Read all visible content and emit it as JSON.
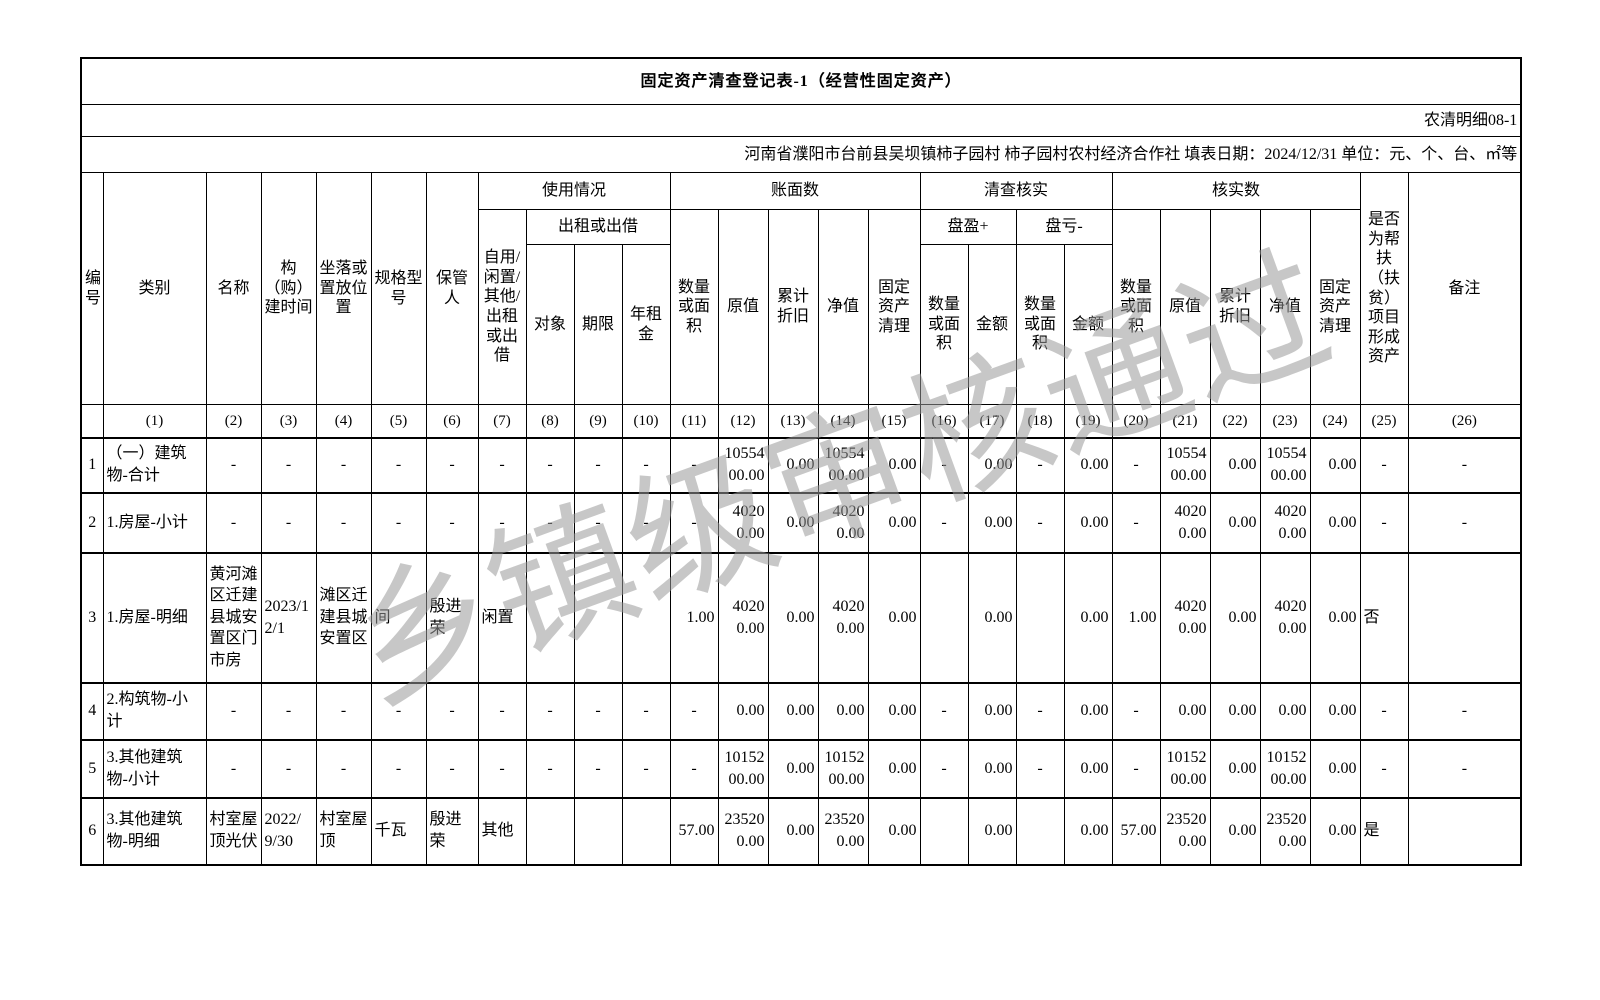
{
  "title": "固定资产清查登记表-1（经营性固定资产）",
  "form_code": "农清明细08-1",
  "info_line": "河南省濮阳市台前县吴坝镇柿子园村  柿子园村农村经济合作社  填表日期：2024/12/31  单位：元、个、台、㎡等",
  "watermark": "乡镇级审核通过",
  "colors": {
    "background": "#ffffff",
    "border": "#000000",
    "text": "#000000",
    "watermark_gray": "#b0b0b0"
  },
  "header": {
    "num": "编号",
    "category": "类别",
    "name": "名称",
    "build_time": "构（购）建时间",
    "location": "坐落或置放位置",
    "spec": "规格型号",
    "keeper": "保管人",
    "usage_group": "使用情况",
    "usage_self": "自用/闲置/其他/出租或出借",
    "rent_group": "出租或出借",
    "rent_target": "对象",
    "rent_term": "期限",
    "rent_annual": "年租金",
    "book_group": "账面数",
    "qty": "数量或面积",
    "original_value": "原值",
    "acc_depreciation": "累计折旧",
    "net_value": "净值",
    "clearing": "固定资产清理",
    "check_group": "清查核实",
    "surplus_group": "盘盈+",
    "loss_group": "盘亏-",
    "amount": "金额",
    "verified_group": "核实数",
    "poverty": "是否为帮扶（扶贫）项目形成资产",
    "remark": "备注"
  },
  "table": {
    "col_numbers": [
      "",
      "(1)",
      "(2)",
      "(3)",
      "(4)",
      "(5)",
      "(6)",
      "(7)",
      "(8)",
      "(9)",
      "(10)",
      "(11)",
      "(12)",
      "(13)",
      "(14)",
      "(15)",
      "(16)",
      "(17)",
      "(18)",
      "(19)",
      "(20)",
      "(21)",
      "(22)",
      "(23)",
      "(24)",
      "(25)",
      "(26)"
    ],
    "rows": [
      [
        "1",
        "（一）建筑物-合计",
        "-",
        "-",
        "-",
        "-",
        "-",
        "-",
        "-",
        "-",
        "-",
        "-",
        "1055400.00",
        "0.00",
        "1055400.00",
        "0.00",
        "-",
        "0.00",
        "-",
        "0.00",
        "-",
        "1055400.00",
        "0.00",
        "1055400.00",
        "0.00",
        "-",
        "-"
      ],
      [
        "2",
        "1.房屋-小计",
        "-",
        "-",
        "-",
        "-",
        "-",
        "-",
        "-",
        "-",
        "-",
        "-",
        "40200.00",
        "0.00",
        "40200.00",
        "0.00",
        "-",
        "0.00",
        "-",
        "0.00",
        "-",
        "40200.00",
        "0.00",
        "40200.00",
        "0.00",
        "-",
        "-"
      ],
      [
        "3",
        "1.房屋-明细",
        "黄河滩区迁建县城安置区门市房",
        "2023/12/1",
        "滩区迁建县城安置区",
        "间",
        "殷进荣",
        "闲置",
        "",
        "",
        "",
        "1.00",
        "40200.00",
        "0.00",
        "40200.00",
        "0.00",
        "",
        "0.00",
        "",
        "0.00",
        "1.00",
        "40200.00",
        "0.00",
        "40200.00",
        "0.00",
        "否",
        ""
      ],
      [
        "4",
        "2.构筑物-小计",
        "-",
        "-",
        "-",
        "-",
        "-",
        "-",
        "-",
        "-",
        "-",
        "-",
        "0.00",
        "0.00",
        "0.00",
        "0.00",
        "-",
        "0.00",
        "-",
        "0.00",
        "-",
        "0.00",
        "0.00",
        "0.00",
        "0.00",
        "-",
        "-"
      ],
      [
        "5",
        "3.其他建筑物-小计",
        "-",
        "-",
        "-",
        "-",
        "-",
        "-",
        "-",
        "-",
        "-",
        "-",
        "1015200.00",
        "0.00",
        "1015200.00",
        "0.00",
        "-",
        "0.00",
        "-",
        "0.00",
        "-",
        "1015200.00",
        "0.00",
        "1015200.00",
        "0.00",
        "-",
        "-"
      ],
      [
        "6",
        "3.其他建筑物-明细",
        "村室屋顶光伏",
        "2022/9/30",
        "村室屋顶",
        "千瓦",
        "殷进荣",
        "其他",
        "",
        "",
        "",
        "57.00",
        "235200.00",
        "0.00",
        "235200.00",
        "0.00",
        "",
        "0.00",
        "",
        "0.00",
        "57.00",
        "235200.00",
        "0.00",
        "235200.00",
        "0.00",
        "是",
        ""
      ]
    ]
  }
}
